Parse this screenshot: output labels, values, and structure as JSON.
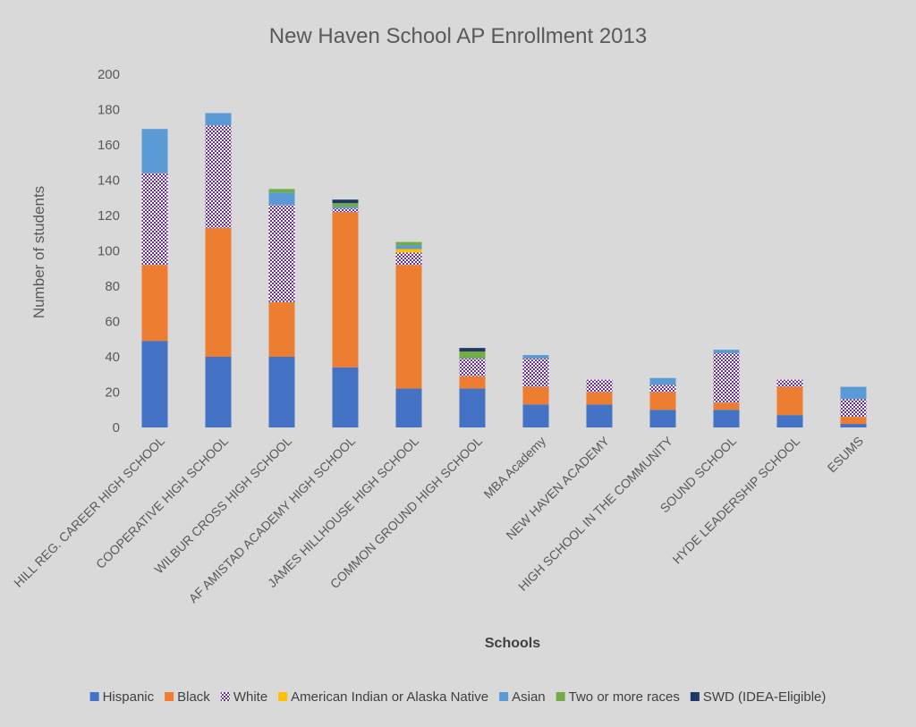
{
  "chart_data": {
    "type": "bar",
    "stacked": true,
    "title": "New Haven School AP Enrollment 2013",
    "xlabel": "Schools",
    "ylabel": "Number of students",
    "ylim": [
      0,
      200
    ],
    "yticks": [
      0,
      20,
      40,
      60,
      80,
      100,
      120,
      140,
      160,
      180,
      200
    ],
    "grid": false,
    "legend_position": "bottom",
    "categories": [
      "HILL REG. CAREER HIGH SCHOOL",
      "COOPERATIVE HIGH SCHOOL",
      "WILBUR CROSS HIGH SCHOOL",
      "AF AMISTAD ACADEMY HIGH SCHOOL",
      "JAMES HILLHOUSE HIGH SCHOOL",
      "COMMON GROUND HIGH SCHOOL",
      "MBA Academy",
      "NEW HAVEN ACADEMY",
      "HIGH SCHOOL IN THE COMMUNITY",
      "SOUND SCHOOL",
      "HYDE LEADERSHIP SCHOOL",
      "ESUMS"
    ],
    "series": [
      {
        "name": "Hispanic",
        "color": "#4472c4",
        "pattern": "solid",
        "values": [
          49,
          40,
          40,
          34,
          22,
          22,
          13,
          13,
          10,
          10,
          7,
          2
        ]
      },
      {
        "name": "Black",
        "color": "#ed7d31",
        "pattern": "solid",
        "values": [
          43,
          73,
          31,
          88,
          70,
          7,
          10,
          7,
          10,
          4,
          16,
          4
        ]
      },
      {
        "name": "White",
        "color": "#7030a0",
        "pattern": "dotted",
        "values": [
          52,
          58,
          55,
          2,
          7,
          10,
          16,
          7,
          4,
          28,
          4,
          10
        ]
      },
      {
        "name": "American Indian or Alaska Native",
        "color": "#ffc000",
        "pattern": "solid",
        "values": [
          0,
          0,
          0,
          0,
          2,
          0,
          0,
          0,
          0,
          0,
          0,
          0
        ]
      },
      {
        "name": "Asian",
        "color": "#5b9bd5",
        "pattern": "solid",
        "values": [
          25,
          7,
          7,
          1,
          2,
          0,
          2,
          0,
          4,
          2,
          0,
          7
        ]
      },
      {
        "name": "Two or more races",
        "color": "#70ad47",
        "pattern": "solid",
        "values": [
          0,
          0,
          2,
          2,
          2,
          4,
          0,
          0,
          0,
          0,
          0,
          0
        ]
      },
      {
        "name": "SWD (IDEA-Eligible)",
        "color": "#203864",
        "pattern": "solid",
        "values": [
          0,
          0,
          0,
          2,
          0,
          2,
          0,
          0,
          0,
          0,
          0,
          0
        ]
      }
    ]
  }
}
